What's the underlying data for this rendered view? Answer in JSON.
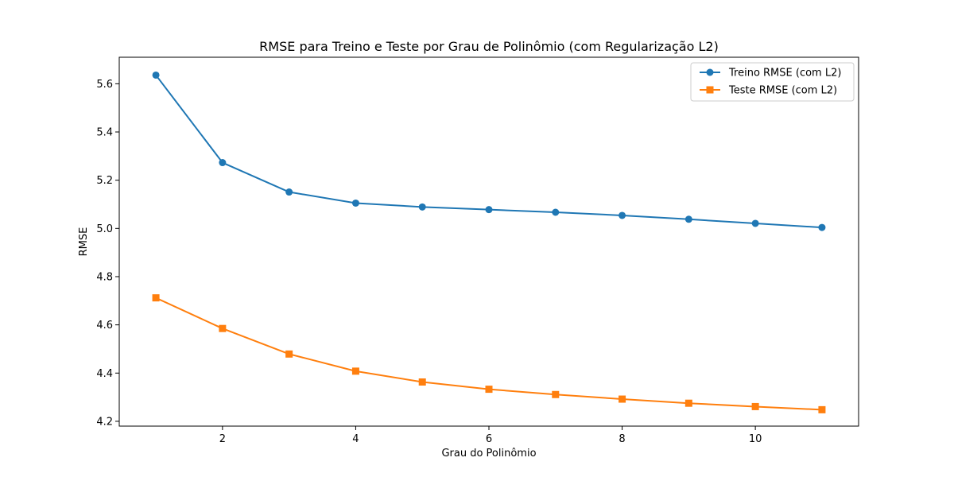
{
  "chart_data": {
    "type": "line",
    "title": "RMSE para Treino e Teste por Grau de Polinômio (com Regularização L2)",
    "xlabel": "Grau do Polinômio",
    "ylabel": "RMSE",
    "x": [
      1,
      2,
      3,
      4,
      5,
      6,
      7,
      8,
      9,
      10,
      11
    ],
    "xlim": [
      0.45,
      11.55
    ],
    "ylim": [
      4.18,
      5.71
    ],
    "xticks": [
      2,
      4,
      6,
      8,
      10
    ],
    "xtick_labels": [
      "2",
      "4",
      "6",
      "8",
      "10"
    ],
    "yticks": [
      4.2,
      4.4,
      4.6,
      4.8,
      5.0,
      5.2,
      5.4,
      5.6
    ],
    "ytick_labels": [
      "4.2",
      "4.4",
      "4.6",
      "4.8",
      "5.0",
      "5.2",
      "5.4",
      "5.6"
    ],
    "grid": false,
    "legend_position": "top-right",
    "series": [
      {
        "name": "Treino RMSE (com L2)",
        "marker": "circle",
        "color": "#1f77b4",
        "values": [
          5.636,
          5.273,
          5.151,
          5.105,
          5.089,
          5.078,
          5.067,
          5.054,
          5.038,
          5.021,
          5.004
        ]
      },
      {
        "name": "Teste RMSE (com L2)",
        "marker": "square",
        "color": "#ff7f0e",
        "values": [
          4.712,
          4.585,
          4.479,
          4.408,
          4.363,
          4.333,
          4.311,
          4.292,
          4.275,
          4.261,
          4.248
        ]
      }
    ]
  }
}
